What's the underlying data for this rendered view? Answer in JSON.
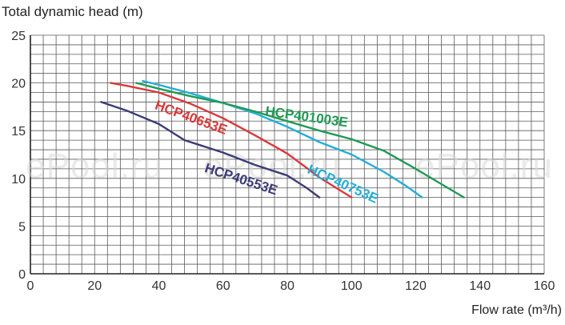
{
  "chart_data": {
    "type": "line",
    "ylabel": "Total dynamic head (m)",
    "xlabel": "Flow rate (m³/h)",
    "xlim": [
      0,
      160
    ],
    "ylim": [
      0,
      25
    ],
    "x_ticks": [
      0,
      20,
      40,
      60,
      80,
      100,
      120,
      140,
      160
    ],
    "y_ticks": [
      0,
      5,
      10,
      15,
      20,
      25
    ],
    "grid": true,
    "watermark": "ePool.ru",
    "series": [
      {
        "name": "HCP40553E",
        "color": "#3b3b78",
        "points": [
          [
            22,
            18
          ],
          [
            30,
            17.1
          ],
          [
            40,
            15.7
          ],
          [
            48,
            14
          ],
          [
            60,
            12.7
          ],
          [
            70,
            11.4
          ],
          [
            80,
            10.3
          ],
          [
            86,
            9
          ],
          [
            90,
            8
          ]
        ]
      },
      {
        "name": "HCP40653E",
        "color": "#d9393a",
        "points": [
          [
            25,
            20
          ],
          [
            30,
            19.7
          ],
          [
            40,
            19
          ],
          [
            50,
            17.8
          ],
          [
            60,
            16.3
          ],
          [
            70,
            14.5
          ],
          [
            80,
            12.6
          ],
          [
            90,
            10.1
          ],
          [
            100,
            8
          ]
        ]
      },
      {
        "name": "HCP40753E",
        "color": "#22aed8",
        "points": [
          [
            35,
            20.2
          ],
          [
            40,
            19.8
          ],
          [
            50,
            18.9
          ],
          [
            60,
            17.9
          ],
          [
            70,
            16.8
          ],
          [
            80,
            15.4
          ],
          [
            90,
            13.8
          ],
          [
            100,
            12.5
          ],
          [
            110,
            10.7
          ],
          [
            117,
            9.2
          ],
          [
            122,
            8
          ]
        ]
      },
      {
        "name": "HCP401003E",
        "color": "#1f9a55",
        "points": [
          [
            33,
            20
          ],
          [
            40,
            19.4
          ],
          [
            50,
            18.6
          ],
          [
            60,
            17.9
          ],
          [
            70,
            17
          ],
          [
            80,
            16
          ],
          [
            90,
            15
          ],
          [
            100,
            14.1
          ],
          [
            110,
            12.9
          ],
          [
            120,
            11
          ],
          [
            128,
            9.4
          ],
          [
            135,
            8
          ]
        ]
      }
    ],
    "series_labels": [
      {
        "series": "HCP401003E",
        "x": 73,
        "y": 16.6,
        "rotate": 8
      },
      {
        "series": "HCP40653E",
        "x": 38.5,
        "y": 17.3,
        "rotate": 20
      },
      {
        "series": "HCP40753E",
        "x": 86,
        "y": 10.6,
        "rotate": 24
      },
      {
        "series": "HCP40553E",
        "x": 54,
        "y": 10.7,
        "rotate": 18
      }
    ]
  }
}
